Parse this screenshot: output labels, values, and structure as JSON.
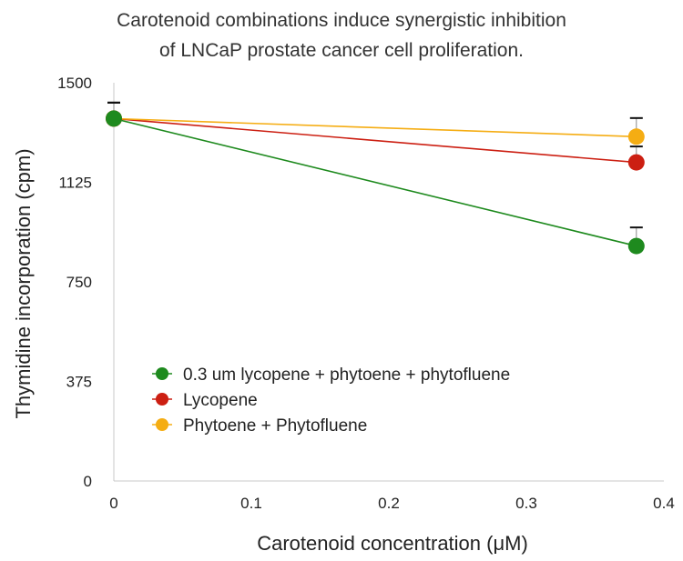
{
  "chart_data": {
    "type": "line",
    "title_lines": [
      "Carotenoid combinations induce synergistic inhibition",
      "of LNCaP prostate cancer cell proliferation."
    ],
    "xlabel": "Carotenoid concentration (μM)",
    "ylabel": "Thymidine incorporation (cpm)",
    "xlim": [
      0,
      0.4
    ],
    "ylim": [
      0,
      1500
    ],
    "x_ticks": [
      "0",
      "0.1",
      "0.2",
      "0.3",
      "0.4"
    ],
    "y_ticks": [
      "0",
      "375",
      "750",
      "1125",
      "1500"
    ],
    "grid": false,
    "legend_position": "lower-left",
    "series": [
      {
        "name": "0.3 um lycopene + phytoene + phytofluene",
        "color": "#1e8a1e",
        "x": [
          0,
          0.38
        ],
        "y": [
          1365,
          885
        ],
        "err": [
          60,
          70
        ]
      },
      {
        "name": "Lycopene",
        "color": "#cc1f12",
        "x": [
          0,
          0.38
        ],
        "y": [
          1365,
          1200
        ],
        "err": [
          60,
          60
        ]
      },
      {
        "name": "Phytoene + Phytofluene",
        "color": "#f5ad13",
        "x": [
          0,
          0.38
        ],
        "y": [
          1365,
          1297
        ],
        "err": [
          60,
          70
        ]
      }
    ]
  }
}
